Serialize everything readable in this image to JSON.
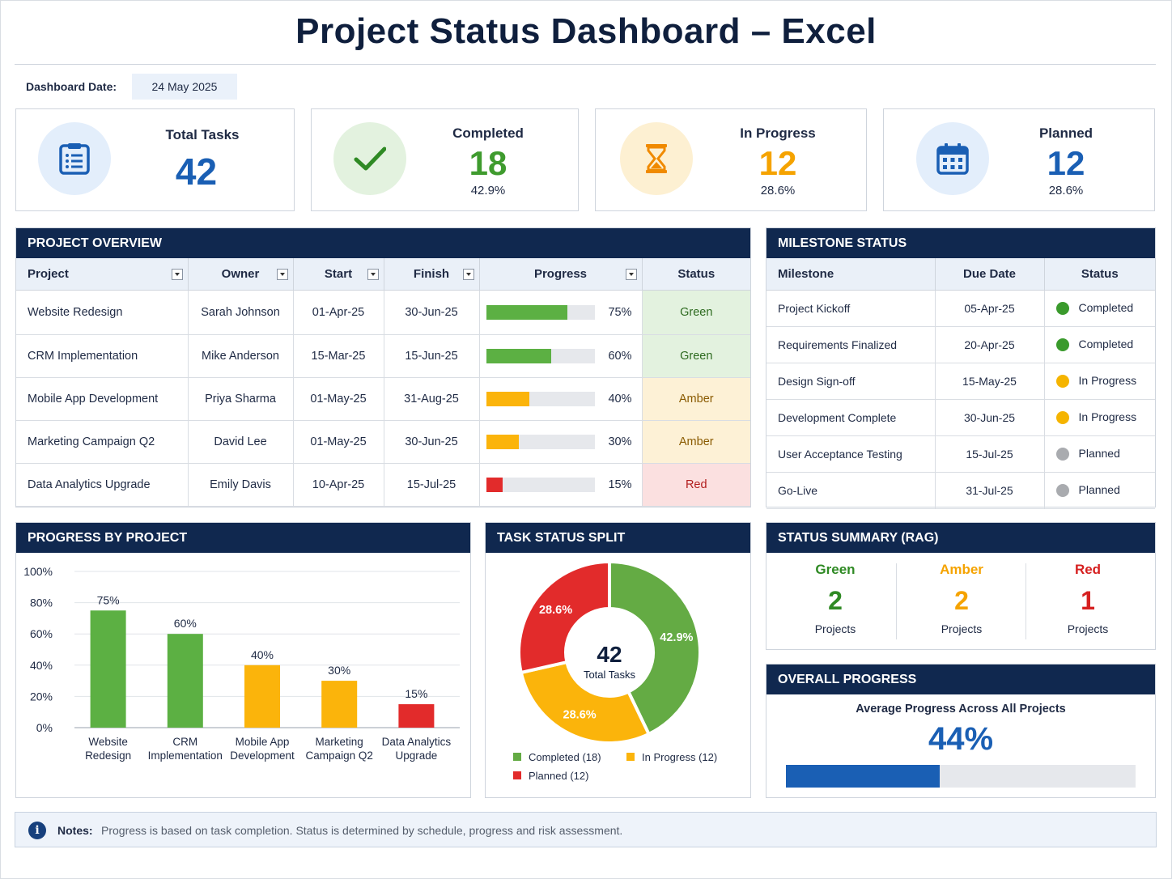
{
  "title": "Project Status Dashboard – Excel",
  "dashboard_date": {
    "label": "Dashboard Date:",
    "value": "24 May 2025"
  },
  "kpis": {
    "total": {
      "label": "Total Tasks",
      "value": "42",
      "icon": "clipboard-icon"
    },
    "completed": {
      "label": "Completed",
      "value": "18",
      "pct": "42.9%",
      "icon": "checkmark-icon",
      "color": "#3f9b2e"
    },
    "in_progress": {
      "label": "In Progress",
      "value": "12",
      "pct": "28.6%",
      "icon": "hourglass-icon",
      "color": "#f5a300"
    },
    "planned": {
      "label": "Planned",
      "value": "12",
      "pct": "28.6%",
      "icon": "calendar-icon",
      "color": "#1a5fb4"
    }
  },
  "overview": {
    "heading": "PROJECT OVERVIEW",
    "columns": [
      "Project",
      "Owner",
      "Start",
      "Finish",
      "Progress",
      "Status"
    ],
    "rows": [
      {
        "project": "Website Redesign",
        "owner": "Sarah Johnson",
        "start": "01-Apr-25",
        "finish": "30-Jun-25",
        "progress": 75,
        "progress_label": "75%",
        "status": "Green"
      },
      {
        "project": "CRM Implementation",
        "owner": "Mike Anderson",
        "start": "15-Mar-25",
        "finish": "15-Jun-25",
        "progress": 60,
        "progress_label": "60%",
        "status": "Green"
      },
      {
        "project": "Mobile App Development",
        "owner": "Priya Sharma",
        "start": "01-May-25",
        "finish": "31-Aug-25",
        "progress": 40,
        "progress_label": "40%",
        "status": "Amber"
      },
      {
        "project": "Marketing Campaign Q2",
        "owner": "David Lee",
        "start": "01-May-25",
        "finish": "30-Jun-25",
        "progress": 30,
        "progress_label": "30%",
        "status": "Amber"
      },
      {
        "project": "Data Analytics Upgrade",
        "owner": "Emily Davis",
        "start": "10-Apr-25",
        "finish": "15-Jul-25",
        "progress": 15,
        "progress_label": "15%",
        "status": "Red"
      }
    ]
  },
  "milestones": {
    "heading": "MILESTONE STATUS",
    "columns": [
      "Milestone",
      "Due Date",
      "Status"
    ],
    "rows": [
      {
        "name": "Project Kickoff",
        "due": "05-Apr-25",
        "status": "Completed"
      },
      {
        "name": "Requirements Finalized",
        "due": "20-Apr-25",
        "status": "Completed"
      },
      {
        "name": "Design Sign-off",
        "due": "15-May-25",
        "status": "In Progress"
      },
      {
        "name": "Development Complete",
        "due": "30-Jun-25",
        "status": "In Progress"
      },
      {
        "name": "User Acceptance Testing",
        "due": "15-Jul-25",
        "status": "Planned"
      },
      {
        "name": "Go-Live",
        "due": "31-Jul-25",
        "status": "Planned"
      }
    ]
  },
  "status_colors": {
    "Green": {
      "bg": "#e3f2df",
      "text": "#2d6a1f",
      "bar": "#5cb043"
    },
    "Amber": {
      "bg": "#fdf1d6",
      "text": "#8a5a00",
      "bar": "#fbb40b"
    },
    "Red": {
      "bg": "#fbe0e0",
      "text": "#b21d1d",
      "bar": "#e22b2b"
    },
    "Completed": "#3a9a2c",
    "In Progress": "#f5b400",
    "Planned": "#a9abaf"
  },
  "progress_chart": {
    "heading": "PROGRESS BY PROJECT",
    "chart_data": {
      "type": "bar",
      "categories": [
        [
          "Website",
          "Redesign"
        ],
        [
          "CRM",
          "Implementation"
        ],
        [
          "Mobile App",
          "Development"
        ],
        [
          "Marketing",
          "Campaign Q2"
        ],
        [
          "Data Analytics",
          "Upgrade"
        ]
      ],
      "values": [
        75,
        60,
        40,
        30,
        15
      ],
      "value_labels": [
        "75%",
        "60%",
        "40%",
        "30%",
        "15%"
      ],
      "colors": [
        "#5cb043",
        "#5cb043",
        "#fbb40b",
        "#fbb40b",
        "#e22b2b"
      ],
      "yticks": [
        "0%",
        "20%",
        "40%",
        "60%",
        "80%",
        "100%"
      ],
      "ylim": [
        0,
        100
      ],
      "grid": true
    }
  },
  "task_split": {
    "heading": "TASK STATUS SPLIT",
    "center_value": "42",
    "center_label": "Total Tasks",
    "chart_data": {
      "type": "pie",
      "slices": [
        {
          "name": "Completed",
          "value": 18,
          "label": "42.9%",
          "color": "#64ab44",
          "legend": "Completed (18)"
        },
        {
          "name": "In Progress",
          "value": 12,
          "label": "28.6%",
          "color": "#fbb40b",
          "legend": "In Progress (12)"
        },
        {
          "name": "Planned",
          "value": 12,
          "label": "28.6%",
          "color": "#e22b2b",
          "legend": "Planned  (12)"
        }
      ]
    }
  },
  "rag_summary": {
    "heading": "STATUS SUMMARY (RAG)",
    "items": [
      {
        "label": "Green",
        "value": "2",
        "sub": "Projects",
        "color": "#2f8a24"
      },
      {
        "label": "Amber",
        "value": "2",
        "sub": "Projects",
        "color": "#f5a300"
      },
      {
        "label": "Red",
        "value": "1",
        "sub": "Projects",
        "color": "#d62020"
      }
    ]
  },
  "overall_progress": {
    "heading": "OVERALL PROGRESS",
    "subtitle": "Average Progress Across All Projects",
    "value_label": "44%",
    "value": 44,
    "bar_color": "#1a5fb4"
  },
  "notes": {
    "label": "Notes:",
    "text": "Progress is based on task completion. Status is determined by schedule, progress and risk assessment."
  }
}
